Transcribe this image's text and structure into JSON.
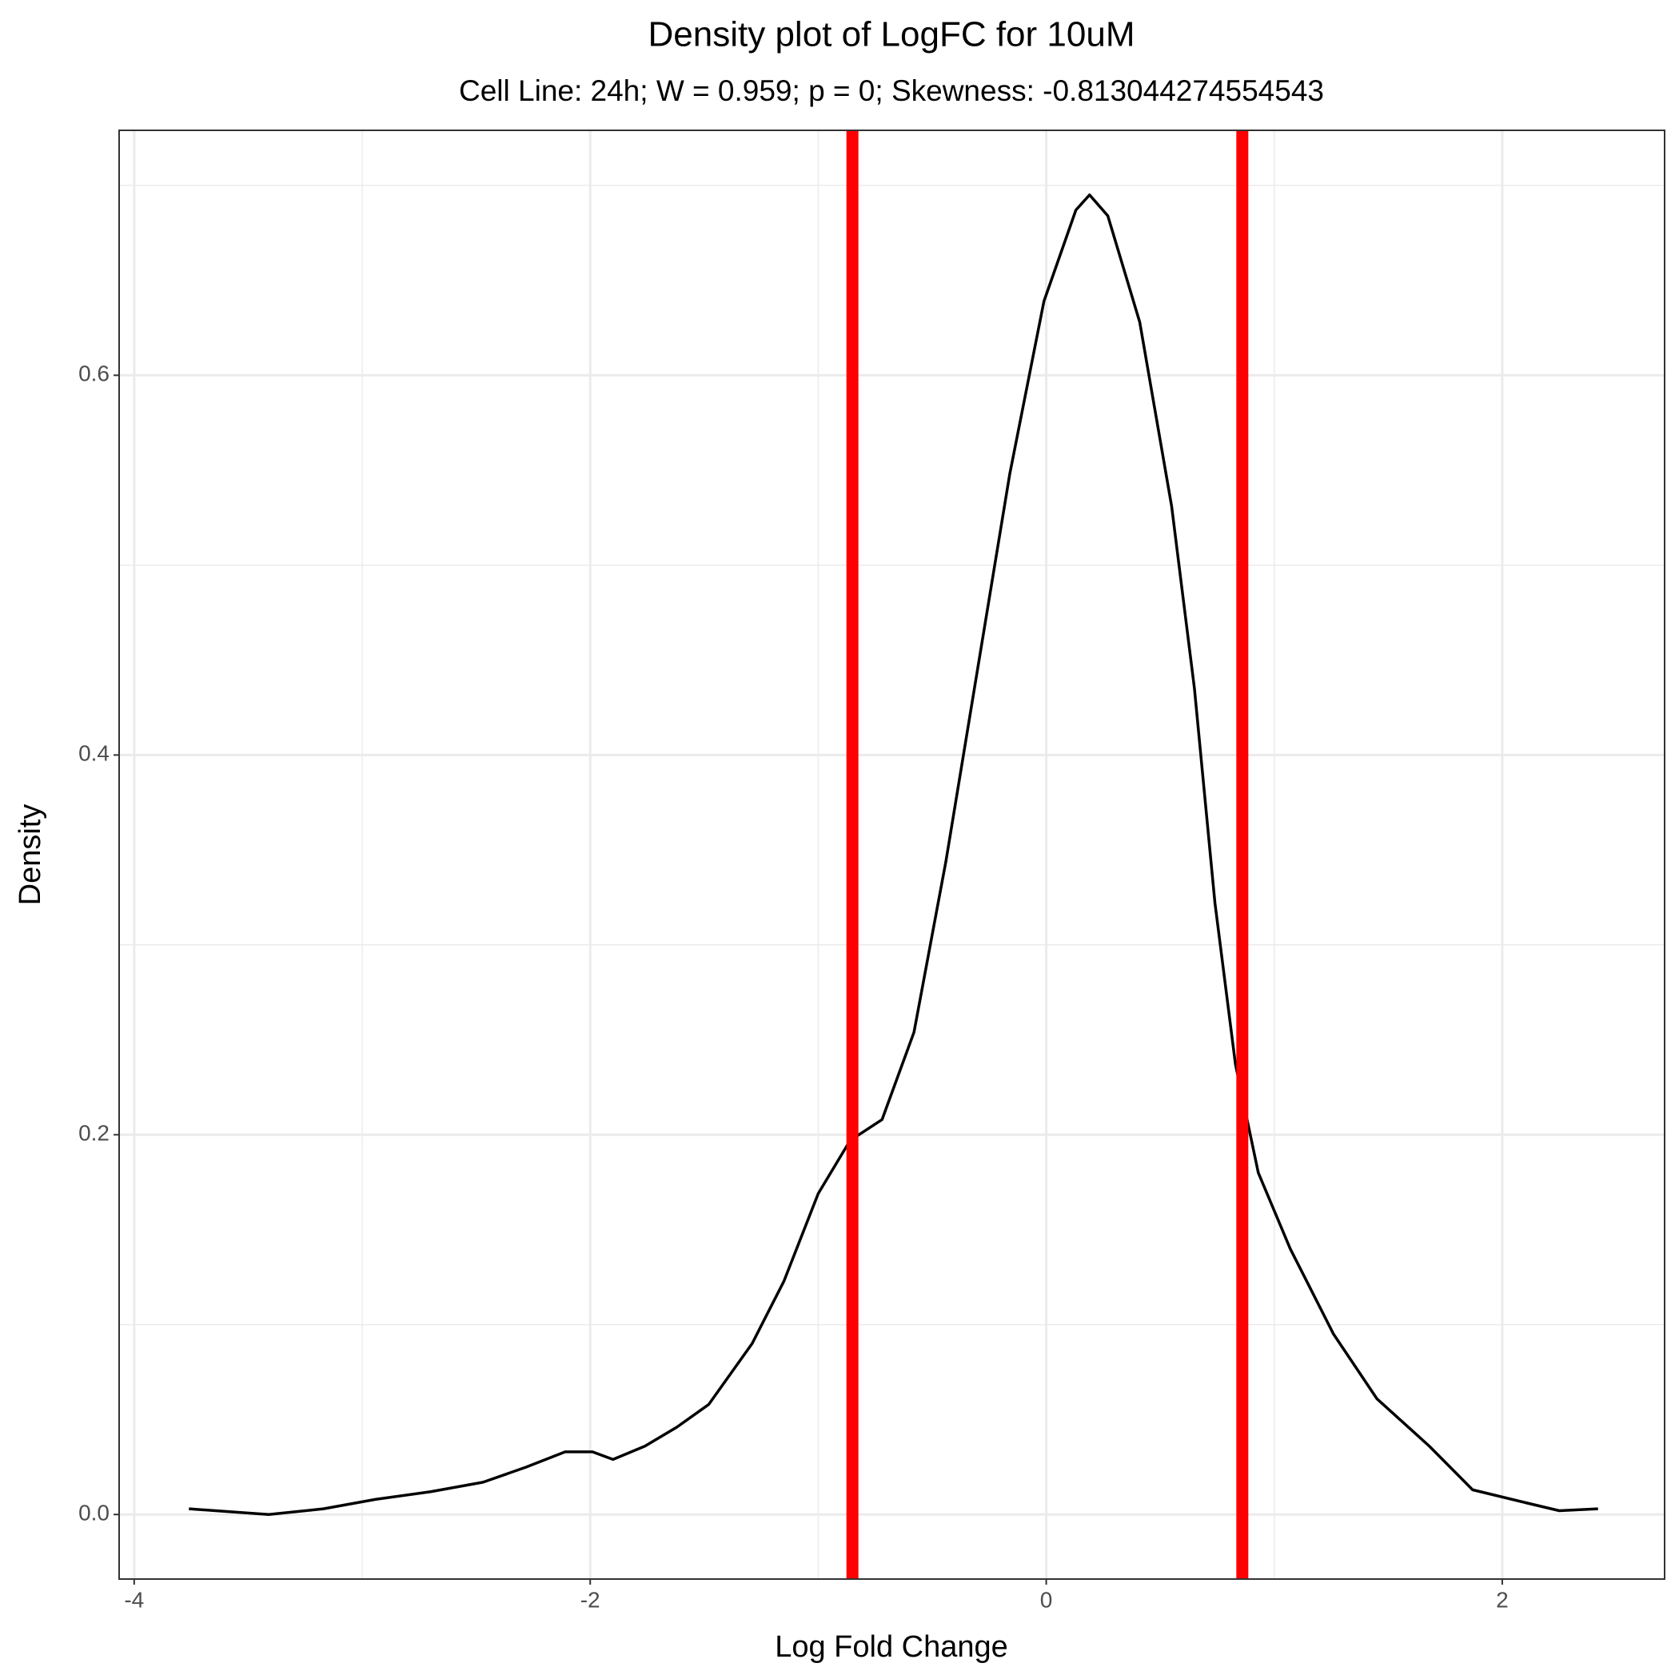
{
  "chart_data": {
    "type": "line",
    "title": "Density plot of LogFC for 10uM",
    "subtitle": "Cell Line: 24h; W = 0.959; p = 0; Skewness: -0.813044274554543",
    "x_label": "Log Fold Change",
    "y_label": "Density",
    "x": [
      -3.76,
      -3.41,
      -3.17,
      -2.94,
      -2.7,
      -2.47,
      -2.28,
      -2.11,
      -1.99,
      -1.9,
      -1.76,
      -1.62,
      -1.48,
      -1.29,
      -1.15,
      -1.0,
      -0.86,
      -0.72,
      -0.58,
      -0.44,
      -0.3,
      -0.16,
      -0.01,
      0.13,
      0.19,
      0.27,
      0.41,
      0.55,
      0.65,
      0.74,
      0.83,
      0.93,
      1.07,
      1.26,
      1.45,
      1.68,
      1.87,
      2.11,
      2.25,
      2.42
    ],
    "values": [
      0.003,
      0.0,
      0.003,
      0.008,
      0.012,
      0.017,
      0.025,
      0.033,
      0.033,
      0.029,
      0.036,
      0.046,
      0.058,
      0.09,
      0.123,
      0.169,
      0.197,
      0.208,
      0.254,
      0.344,
      0.446,
      0.548,
      0.639,
      0.687,
      0.695,
      0.684,
      0.628,
      0.531,
      0.435,
      0.322,
      0.237,
      0.18,
      0.14,
      0.095,
      0.061,
      0.036,
      0.013,
      0.006,
      0.002,
      0.003
    ],
    "color": "#000000",
    "vlines": [
      {
        "x": -0.85,
        "color": "#ff0000"
      },
      {
        "x": 0.86,
        "color": "#ff0000"
      }
    ],
    "xlim": [
      -4.066,
      2.712
    ],
    "ylim": [
      -0.034,
      0.729
    ],
    "xticks": [
      -4,
      -2,
      0,
      2
    ],
    "yticks": [
      {
        "value": 0,
        "label": "0.0"
      },
      0.2,
      0.4,
      0.6
    ],
    "minor_xticks": [
      -3,
      -1,
      1
    ],
    "minor_yticks": [
      0.1,
      0.3,
      0.5,
      0.7
    ],
    "grid": true
  }
}
